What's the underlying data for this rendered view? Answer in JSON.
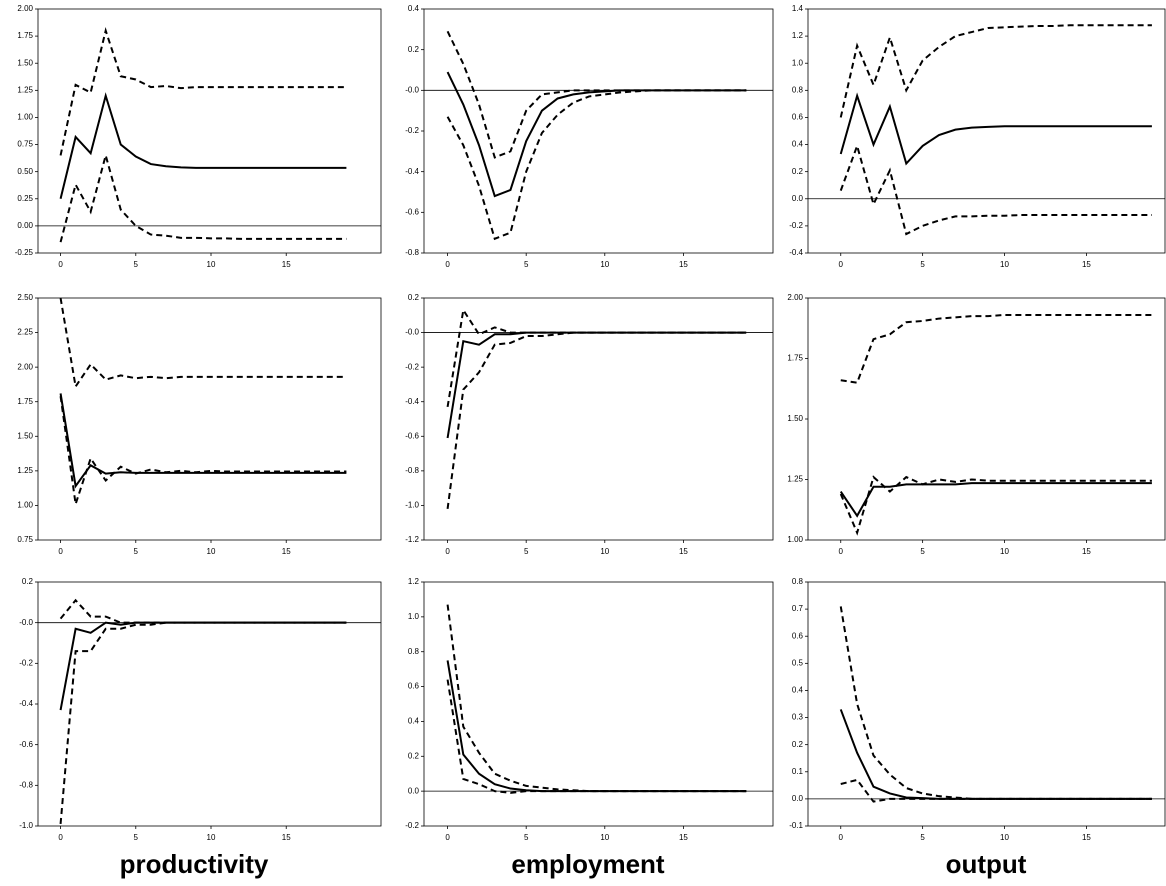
{
  "chart_data": [
    {
      "type": "line",
      "x": [
        0,
        1,
        2,
        3,
        4,
        5,
        6,
        7,
        8,
        9,
        10,
        11,
        12,
        13,
        14,
        15,
        16,
        17,
        18,
        19
      ],
      "xlim": [
        -1.5,
        21.3
      ],
      "xticks": [
        0,
        5,
        10,
        15
      ],
      "ylim": [
        -0.25,
        2.0
      ],
      "yticks": [
        {
          "value": -0.25,
          "label": "-0.25"
        },
        {
          "value": 0,
          "label": "0.00"
        },
        0.25,
        {
          "value": 0.5,
          "label": "0.50"
        },
        0.75,
        {
          "value": 1,
          "label": "1.00"
        },
        1.25,
        {
          "value": 1.5,
          "label": "1.50"
        },
        1.75,
        {
          "value": 2,
          "label": "2.00"
        }
      ],
      "zero_line": true,
      "series": [
        {
          "color": "#000000",
          "dashed": false,
          "values": [
            0.25,
            0.82,
            0.67,
            1.2,
            0.75,
            0.64,
            0.57,
            0.55,
            0.54,
            0.535,
            0.535,
            0.535,
            0.535,
            0.535,
            0.535,
            0.535,
            0.535,
            0.535,
            0.535,
            0.535
          ]
        },
        {
          "color": "#000000",
          "dashed": true,
          "values": [
            0.65,
            1.3,
            1.23,
            1.8,
            1.38,
            1.35,
            1.28,
            1.29,
            1.27,
            1.28,
            1.28,
            1.28,
            1.28,
            1.28,
            1.28,
            1.28,
            1.28,
            1.28,
            1.28,
            1.28
          ]
        },
        {
          "color": "#000000",
          "dashed": true,
          "values": [
            -0.15,
            0.38,
            0.13,
            0.65,
            0.15,
            0,
            -0.08,
            -0.09,
            -0.11,
            -0.11,
            -0.115,
            -0.115,
            -0.12,
            -0.12,
            -0.12,
            -0.12,
            -0.12,
            -0.12,
            -0.12,
            -0.12
          ]
        }
      ]
    },
    {
      "type": "line",
      "x": [
        0,
        1,
        2,
        3,
        4,
        5,
        6,
        7,
        8,
        9,
        10,
        11,
        12,
        13,
        14,
        15,
        16,
        17,
        18,
        19
      ],
      "xlim": [
        -1.5,
        20.7
      ],
      "xticks": [
        0,
        5,
        10,
        15
      ],
      "ylim": [
        -0.8,
        0.4
      ],
      "yticks": [
        -0.8,
        -0.6,
        -0.4,
        -0.2,
        {
          "value": 0,
          "label": "-0.0"
        },
        0.2,
        0.4
      ],
      "zero_line": true,
      "series": [
        {
          "color": "#000000",
          "dashed": false,
          "values": [
            0.09,
            -0.07,
            -0.27,
            -0.52,
            -0.49,
            -0.25,
            -0.1,
            -0.04,
            -0.02,
            -0.01,
            -0.005,
            0,
            0,
            0,
            0,
            0,
            0,
            0,
            0,
            0
          ]
        },
        {
          "color": "#000000",
          "dashed": true,
          "values": [
            0.29,
            0.13,
            -0.07,
            -0.33,
            -0.3,
            -0.1,
            -0.02,
            -0.01,
            0,
            0,
            0,
            0,
            0,
            0,
            0,
            0,
            0,
            0,
            0,
            0
          ]
        },
        {
          "color": "#000000",
          "dashed": true,
          "values": [
            -0.13,
            -0.27,
            -0.47,
            -0.73,
            -0.7,
            -0.4,
            -0.21,
            -0.12,
            -0.06,
            -0.03,
            -0.02,
            -0.01,
            -0.005,
            0,
            0,
            0,
            0,
            0,
            0,
            0
          ]
        }
      ]
    },
    {
      "type": "line",
      "x": [
        0,
        1,
        2,
        3,
        4,
        5,
        6,
        7,
        8,
        9,
        10,
        11,
        12,
        13,
        14,
        15,
        16,
        17,
        18,
        19
      ],
      "xlim": [
        -2,
        19.8
      ],
      "xticks": [
        0,
        5,
        10,
        15
      ],
      "ylim": [
        -0.4,
        1.4
      ],
      "yticks": [
        -0.4,
        -0.2,
        {
          "value": 0,
          "label": "0.0"
        },
        0.2,
        0.4,
        0.6,
        0.8,
        {
          "value": 1,
          "label": "1.0"
        },
        1.2,
        1.4
      ],
      "zero_line": true,
      "series": [
        {
          "color": "#000000",
          "dashed": false,
          "values": [
            0.33,
            0.76,
            0.4,
            0.68,
            0.26,
            0.39,
            0.47,
            0.51,
            0.525,
            0.53,
            0.535,
            0.535,
            0.535,
            0.535,
            0.535,
            0.535,
            0.535,
            0.535,
            0.535,
            0.535
          ]
        },
        {
          "color": "#000000",
          "dashed": true,
          "values": [
            0.6,
            1.13,
            0.84,
            1.19,
            0.8,
            1.02,
            1.12,
            1.2,
            1.23,
            1.26,
            1.265,
            1.27,
            1.275,
            1.275,
            1.28,
            1.28,
            1.28,
            1.28,
            1.28,
            1.28
          ]
        },
        {
          "color": "#000000",
          "dashed": true,
          "values": [
            0.06,
            0.39,
            -0.04,
            0.21,
            -0.26,
            -0.2,
            -0.16,
            -0.13,
            -0.13,
            -0.125,
            -0.125,
            -0.12,
            -0.12,
            -0.12,
            -0.12,
            -0.12,
            -0.12,
            -0.12,
            -0.12,
            -0.12
          ]
        }
      ]
    },
    {
      "type": "line",
      "x": [
        0,
        1,
        2,
        3,
        4,
        5,
        6,
        7,
        8,
        9,
        10,
        11,
        12,
        13,
        14,
        15,
        16,
        17,
        18,
        19
      ],
      "xlim": [
        -1.5,
        21.3
      ],
      "xticks": [
        0,
        5,
        10,
        15
      ],
      "ylim": [
        0.75,
        2.5
      ],
      "yticks": [
        0.75,
        {
          "value": 1,
          "label": "1.00"
        },
        1.25,
        {
          "value": 1.5,
          "label": "1.50"
        },
        1.75,
        {
          "value": 2,
          "label": "2.00"
        },
        2.25,
        {
          "value": 2.5,
          "label": "2.50"
        }
      ],
      "zero_line": true,
      "series": [
        {
          "color": "#000000",
          "dashed": false,
          "values": [
            1.81,
            1.14,
            1.29,
            1.23,
            1.24,
            1.235,
            1.235,
            1.235,
            1.235,
            1.235,
            1.235,
            1.235,
            1.235,
            1.235,
            1.235,
            1.235,
            1.235,
            1.235,
            1.235,
            1.235
          ]
        },
        {
          "color": "#000000",
          "dashed": true,
          "values": [
            2.5,
            1.86,
            2.02,
            1.91,
            1.94,
            1.92,
            1.93,
            1.92,
            1.93,
            1.93,
            1.93,
            1.93,
            1.93,
            1.93,
            1.93,
            1.93,
            1.93,
            1.93,
            1.93,
            1.93
          ]
        },
        {
          "color": "#000000",
          "dashed": true,
          "values": [
            1.79,
            1.01,
            1.34,
            1.18,
            1.28,
            1.23,
            1.26,
            1.24,
            1.25,
            1.24,
            1.25,
            1.245,
            1.245,
            1.245,
            1.245,
            1.245,
            1.245,
            1.245,
            1.245,
            1.245
          ]
        }
      ]
    },
    {
      "type": "line",
      "x": [
        0,
        1,
        2,
        3,
        4,
        5,
        6,
        7,
        8,
        9,
        10,
        11,
        12,
        13,
        14,
        15,
        16,
        17,
        18,
        19
      ],
      "xlim": [
        -1.5,
        20.7
      ],
      "xticks": [
        0,
        5,
        10,
        15
      ],
      "ylim": [
        -1.2,
        0.2
      ],
      "yticks": [
        -1.2,
        {
          "value": -1,
          "label": "-1.0"
        },
        -0.8,
        -0.6,
        -0.4,
        -0.2,
        {
          "value": 0,
          "label": "-0.0"
        },
        0.2
      ],
      "zero_line": true,
      "series": [
        {
          "color": "#000000",
          "dashed": false,
          "values": [
            -0.61,
            -0.05,
            -0.07,
            -0.01,
            -0.01,
            0,
            0,
            0,
            0,
            0,
            0,
            0,
            0,
            0,
            0,
            0,
            0,
            0,
            0,
            0
          ]
        },
        {
          "color": "#000000",
          "dashed": true,
          "values": [
            -0.43,
            0.13,
            -0.01,
            0.03,
            0,
            0,
            0,
            0,
            0,
            0,
            0,
            0,
            0,
            0,
            0,
            0,
            0,
            0,
            0,
            0
          ]
        },
        {
          "color": "#000000",
          "dashed": true,
          "values": [
            -1.02,
            -0.33,
            -0.23,
            -0.07,
            -0.06,
            -0.02,
            -0.02,
            -0.01,
            0,
            0,
            0,
            0,
            0,
            0,
            0,
            0,
            0,
            0,
            0,
            0
          ]
        }
      ]
    },
    {
      "type": "line",
      "x": [
        0,
        1,
        2,
        3,
        4,
        5,
        6,
        7,
        8,
        9,
        10,
        11,
        12,
        13,
        14,
        15,
        16,
        17,
        18,
        19
      ],
      "xlim": [
        -2,
        19.8
      ],
      "xticks": [
        0,
        5,
        10,
        15
      ],
      "ylim": [
        1.0,
        2.0
      ],
      "yticks": [
        {
          "value": 1,
          "label": "1.00"
        },
        1.25,
        {
          "value": 1.5,
          "label": "1.50"
        },
        1.75,
        {
          "value": 2,
          "label": "2.00"
        }
      ],
      "zero_line": true,
      "series": [
        {
          "color": "#000000",
          "dashed": false,
          "values": [
            1.2,
            1.1,
            1.22,
            1.22,
            1.23,
            1.23,
            1.23,
            1.23,
            1.235,
            1.235,
            1.235,
            1.235,
            1.235,
            1.235,
            1.235,
            1.235,
            1.235,
            1.235,
            1.235,
            1.235
          ]
        },
        {
          "color": "#000000",
          "dashed": true,
          "values": [
            1.66,
            1.65,
            1.83,
            1.85,
            1.9,
            1.905,
            1.915,
            1.92,
            1.925,
            1.925,
            1.93,
            1.93,
            1.93,
            1.93,
            1.93,
            1.93,
            1.93,
            1.93,
            1.93,
            1.93
          ]
        },
        {
          "color": "#000000",
          "dashed": true,
          "values": [
            1.19,
            1.03,
            1.26,
            1.2,
            1.26,
            1.23,
            1.25,
            1.24,
            1.25,
            1.245,
            1.245,
            1.245,
            1.245,
            1.245,
            1.245,
            1.245,
            1.245,
            1.245,
            1.245,
            1.245
          ]
        }
      ]
    },
    {
      "type": "line",
      "x": [
        0,
        1,
        2,
        3,
        4,
        5,
        6,
        7,
        8,
        9,
        10,
        11,
        12,
        13,
        14,
        15,
        16,
        17,
        18,
        19
      ],
      "xlim": [
        -1.5,
        21.3
      ],
      "xticks": [
        0,
        5,
        10,
        15
      ],
      "ylim": [
        -1.0,
        0.2
      ],
      "yticks": [
        {
          "value": -1,
          "label": "-1.0"
        },
        -0.8,
        -0.6,
        -0.4,
        -0.2,
        {
          "value": 0,
          "label": "-0.0"
        },
        0.2
      ],
      "zero_line": true,
      "series": [
        {
          "color": "#000000",
          "dashed": false,
          "values": [
            -0.43,
            -0.03,
            -0.05,
            0,
            -0.01,
            0,
            0,
            0,
            0,
            0,
            0,
            0,
            0,
            0,
            0,
            0,
            0,
            0,
            0,
            0
          ]
        },
        {
          "color": "#000000",
          "dashed": true,
          "values": [
            0.02,
            0.11,
            0.03,
            0.03,
            0,
            0,
            0,
            0,
            0,
            0,
            0,
            0,
            0,
            0,
            0,
            0,
            0,
            0,
            0,
            0
          ]
        },
        {
          "color": "#000000",
          "dashed": true,
          "values": [
            -0.99,
            -0.14,
            -0.14,
            -0.03,
            -0.03,
            -0.01,
            -0.01,
            0,
            0,
            0,
            0,
            0,
            0,
            0,
            0,
            0,
            0,
            0,
            0,
            0
          ]
        }
      ]
    },
    {
      "type": "line",
      "x": [
        0,
        1,
        2,
        3,
        4,
        5,
        6,
        7,
        8,
        9,
        10,
        11,
        12,
        13,
        14,
        15,
        16,
        17,
        18,
        19
      ],
      "xlim": [
        -1.5,
        20.7
      ],
      "xticks": [
        0,
        5,
        10,
        15
      ],
      "ylim": [
        -0.2,
        1.2
      ],
      "yticks": [
        -0.2,
        {
          "value": 0,
          "label": "0.0"
        },
        0.2,
        0.4,
        0.6,
        0.8,
        {
          "value": 1,
          "label": "1.0"
        },
        1.2
      ],
      "zero_line": true,
      "series": [
        {
          "color": "#000000",
          "dashed": false,
          "values": [
            0.75,
            0.21,
            0.1,
            0.04,
            0.015,
            0.005,
            0,
            0,
            0,
            0,
            0,
            0,
            0,
            0,
            0,
            0,
            0,
            0,
            0,
            0
          ]
        },
        {
          "color": "#000000",
          "dashed": true,
          "values": [
            1.07,
            0.37,
            0.22,
            0.1,
            0.06,
            0.03,
            0.02,
            0.01,
            0.005,
            0,
            0,
            0,
            0,
            0,
            0,
            0,
            0,
            0,
            0,
            0
          ]
        },
        {
          "color": "#000000",
          "dashed": true,
          "values": [
            0.64,
            0.07,
            0.04,
            0,
            -0.01,
            0,
            0,
            0,
            0,
            0,
            0,
            0,
            0,
            0,
            0,
            0,
            0,
            0,
            0,
            0
          ]
        }
      ]
    },
    {
      "type": "line",
      "x": [
        0,
        1,
        2,
        3,
        4,
        5,
        6,
        7,
        8,
        9,
        10,
        11,
        12,
        13,
        14,
        15,
        16,
        17,
        18,
        19
      ],
      "xlim": [
        -2,
        19.8
      ],
      "xticks": [
        0,
        5,
        10,
        15
      ],
      "ylim": [
        -0.1,
        0.8
      ],
      "yticks": [
        -0.1,
        {
          "value": 0,
          "label": "0.0"
        },
        0.1,
        0.2,
        0.3,
        0.4,
        0.5,
        0.6,
        0.7,
        0.8
      ],
      "zero_line": true,
      "series": [
        {
          "color": "#000000",
          "dashed": false,
          "values": [
            0.33,
            0.17,
            0.045,
            0.02,
            0.005,
            0.003,
            0,
            0,
            0,
            0,
            0,
            0,
            0,
            0,
            0,
            0,
            0,
            0,
            0,
            0
          ]
        },
        {
          "color": "#000000",
          "dashed": true,
          "values": [
            0.71,
            0.35,
            0.16,
            0.09,
            0.04,
            0.02,
            0.01,
            0.005,
            0,
            0,
            0,
            0,
            0,
            0,
            0,
            0,
            0,
            0,
            0,
            0
          ]
        },
        {
          "color": "#000000",
          "dashed": true,
          "values": [
            0.055,
            0.07,
            -0.01,
            0,
            0,
            0,
            0,
            0,
            0,
            0,
            0,
            0,
            0,
            0,
            0,
            0,
            0,
            0,
            0,
            0
          ]
        }
      ]
    }
  ],
  "column_labels": [
    "productivity",
    "employment",
    "output"
  ]
}
